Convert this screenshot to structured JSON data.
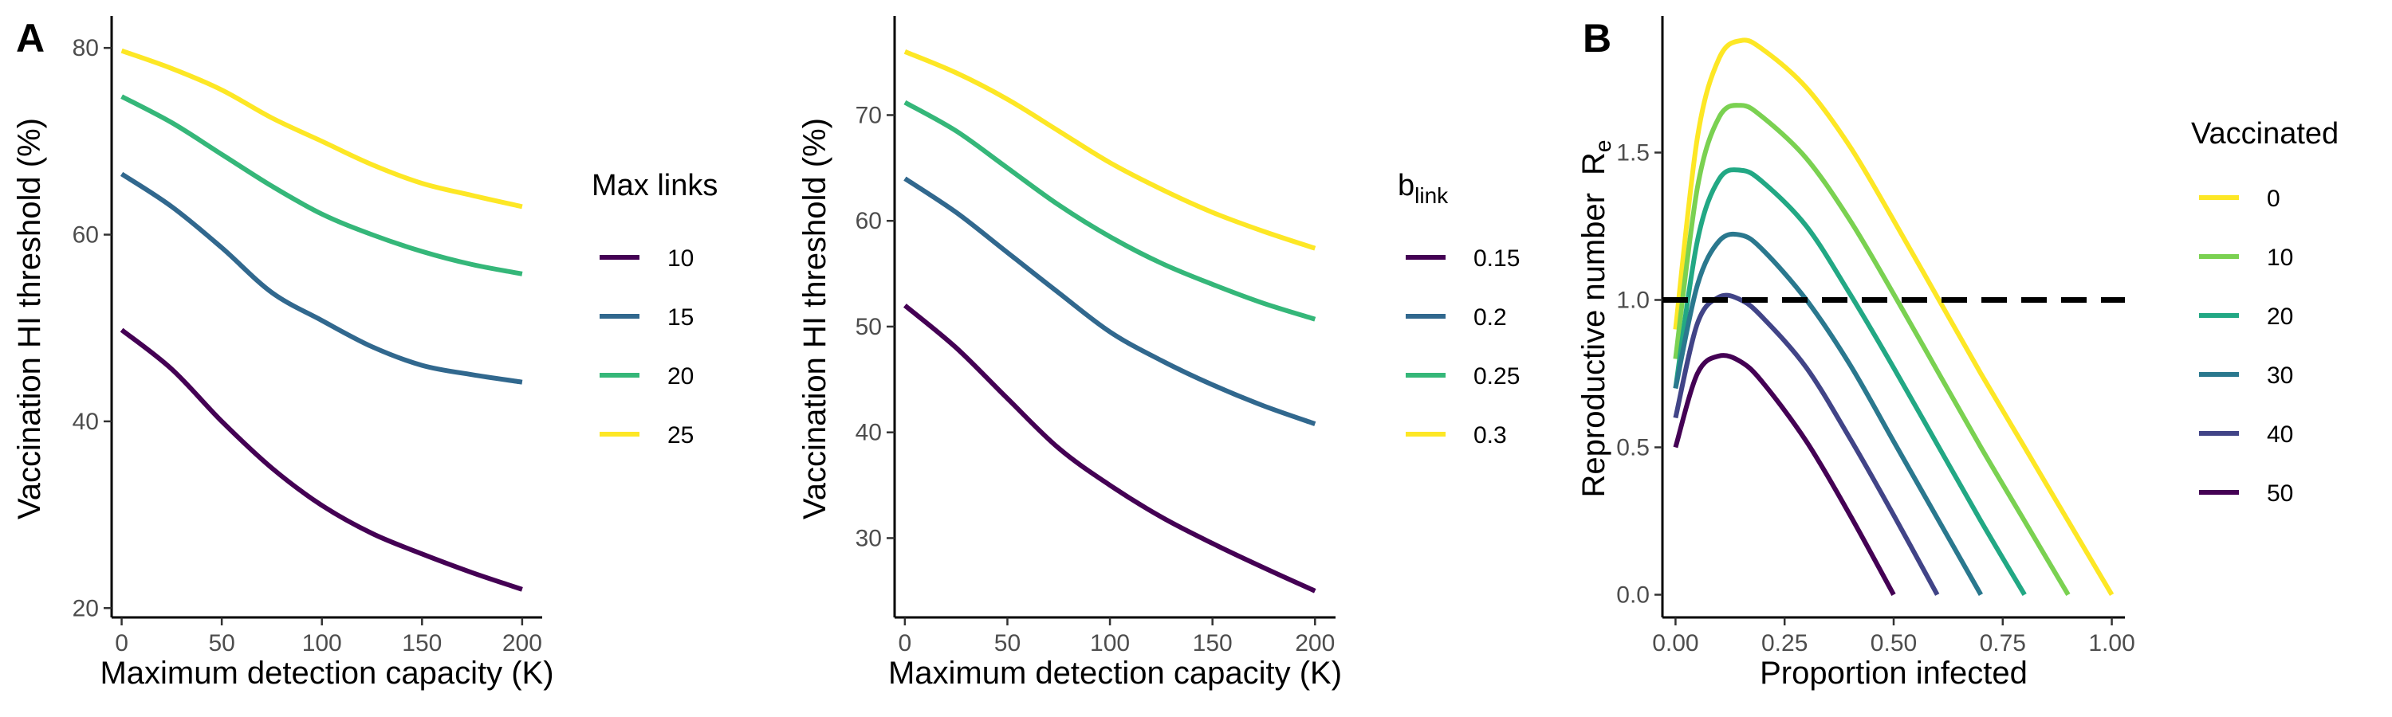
{
  "chart_data": [
    {
      "type": "line",
      "panel_label": "A",
      "xlabel": "Maximum detection capacity (K)",
      "ylabel": "Vaccination HI threshold (%)",
      "xlim": [
        -5,
        210
      ],
      "ylim": [
        19,
        83
      ],
      "xticks": [
        0,
        50,
        100,
        150,
        200
      ],
      "yticks": [
        20,
        40,
        60,
        80
      ],
      "legend": {
        "title": "Max links",
        "placement": "right"
      },
      "series": [
        {
          "name": "10",
          "color": "#440154",
          "x": [
            0,
            25,
            50,
            75,
            100,
            125,
            150,
            175,
            200
          ],
          "y": [
            49.8,
            45.6,
            40.0,
            35.0,
            31.0,
            28.0,
            25.8,
            23.8,
            22.0
          ]
        },
        {
          "name": "15",
          "color": "#31688E",
          "x": [
            0,
            25,
            50,
            75,
            100,
            125,
            150,
            175,
            200
          ],
          "y": [
            66.5,
            63.0,
            58.6,
            53.8,
            50.8,
            48.0,
            46.0,
            45.0,
            44.2
          ]
        },
        {
          "name": "20",
          "color": "#35B779",
          "x": [
            0,
            25,
            50,
            75,
            100,
            125,
            150,
            175,
            200
          ],
          "y": [
            74.8,
            72.0,
            68.6,
            65.2,
            62.2,
            60.0,
            58.2,
            56.8,
            55.8
          ]
        },
        {
          "name": "25",
          "color": "#FDE725",
          "x": [
            0,
            25,
            50,
            75,
            100,
            125,
            150,
            175,
            200
          ],
          "y": [
            79.7,
            77.8,
            75.5,
            72.5,
            70.0,
            67.5,
            65.5,
            64.2,
            63.0
          ]
        }
      ]
    },
    {
      "type": "line",
      "xlabel": "Maximum detection capacity (K)",
      "ylabel": "Vaccination HI threshold (%)",
      "xlim": [
        -5,
        210
      ],
      "ylim": [
        22.5,
        79
      ],
      "xticks": [
        0,
        50,
        100,
        150,
        200
      ],
      "yticks": [
        30,
        40,
        50,
        60,
        70
      ],
      "legend": {
        "title": "b",
        "title_subscript": "link",
        "placement": "right"
      },
      "series": [
        {
          "name": "0.15",
          "color": "#440154",
          "x": [
            0,
            25,
            50,
            75,
            100,
            125,
            150,
            175,
            200
          ],
          "y": [
            52.0,
            48.0,
            43.2,
            38.5,
            35.0,
            32.0,
            29.5,
            27.2,
            25.0
          ]
        },
        {
          "name": "0.2",
          "color": "#31688E",
          "x": [
            0,
            25,
            50,
            75,
            100,
            125,
            150,
            175,
            200
          ],
          "y": [
            64.0,
            60.8,
            57.0,
            53.2,
            49.5,
            46.8,
            44.5,
            42.5,
            40.8
          ]
        },
        {
          "name": "0.25",
          "color": "#35B779",
          "x": [
            0,
            25,
            50,
            75,
            100,
            125,
            150,
            175,
            200
          ],
          "y": [
            71.2,
            68.5,
            65.0,
            61.5,
            58.5,
            56.0,
            54.0,
            52.2,
            50.7
          ]
        },
        {
          "name": "0.3",
          "color": "#FDE725",
          "x": [
            0,
            25,
            50,
            75,
            100,
            125,
            150,
            175,
            200
          ],
          "y": [
            76.0,
            74.0,
            71.5,
            68.5,
            65.5,
            63.0,
            60.8,
            59.0,
            57.4
          ]
        }
      ]
    },
    {
      "type": "line",
      "panel_label": "B",
      "xlabel": "Proportion infected",
      "ylabel": "Reproductive number",
      "ylabel_symbol": "R",
      "ylabel_subscript": "e",
      "xlim": [
        -0.03,
        1.03
      ],
      "ylim": [
        -0.05,
        1.95
      ],
      "xticks": [
        "0.00",
        "0.25",
        "0.50",
        "0.75",
        "1.00"
      ],
      "yticks": [
        "0.0",
        "0.5",
        "1.0",
        "1.5"
      ],
      "reference_line": {
        "y": 1.0,
        "style": "dashed",
        "color": "#000000"
      },
      "legend": {
        "title": "Vaccinated",
        "placement": "right"
      },
      "series": [
        {
          "name": "0",
          "color": "#FDE725",
          "x": [
            0,
            0.05,
            0.1,
            0.15,
            0.2,
            0.3,
            0.4,
            0.5,
            0.6,
            0.7,
            0.8,
            0.9,
            1.0
          ],
          "y": [
            0.9,
            1.55,
            1.82,
            1.88,
            1.85,
            1.72,
            1.52,
            1.27,
            1.01,
            0.75,
            0.5,
            0.25,
            0.0
          ]
        },
        {
          "name": "10",
          "color": "#7AD151",
          "x": [
            0,
            0.05,
            0.1,
            0.15,
            0.2,
            0.3,
            0.4,
            0.5,
            0.6,
            0.7,
            0.8,
            0.9
          ],
          "y": [
            0.8,
            1.38,
            1.62,
            1.66,
            1.62,
            1.48,
            1.27,
            1.02,
            0.76,
            0.5,
            0.25,
            0.0
          ]
        },
        {
          "name": "20",
          "color": "#22A884",
          "x": [
            0,
            0.05,
            0.1,
            0.15,
            0.2,
            0.3,
            0.4,
            0.5,
            0.6,
            0.7,
            0.8
          ],
          "y": [
            0.7,
            1.2,
            1.41,
            1.44,
            1.4,
            1.25,
            1.02,
            0.77,
            0.51,
            0.25,
            0.0
          ]
        },
        {
          "name": "30",
          "color": "#2A788E",
          "x": [
            0,
            0.05,
            0.1,
            0.15,
            0.2,
            0.3,
            0.4,
            0.5,
            0.6,
            0.7
          ],
          "y": [
            0.7,
            1.05,
            1.2,
            1.22,
            1.17,
            1.0,
            0.78,
            0.52,
            0.26,
            0.0
          ]
        },
        {
          "name": "40",
          "color": "#414487",
          "x": [
            0,
            0.05,
            0.1,
            0.15,
            0.2,
            0.3,
            0.4,
            0.5,
            0.6
          ],
          "y": [
            0.6,
            0.92,
            1.01,
            1.0,
            0.94,
            0.77,
            0.53,
            0.27,
            0.0
          ]
        },
        {
          "name": "50",
          "color": "#440154",
          "x": [
            0,
            0.05,
            0.1,
            0.15,
            0.2,
            0.3,
            0.4,
            0.5
          ],
          "y": [
            0.5,
            0.75,
            0.81,
            0.79,
            0.72,
            0.52,
            0.27,
            0.0
          ]
        }
      ]
    }
  ]
}
